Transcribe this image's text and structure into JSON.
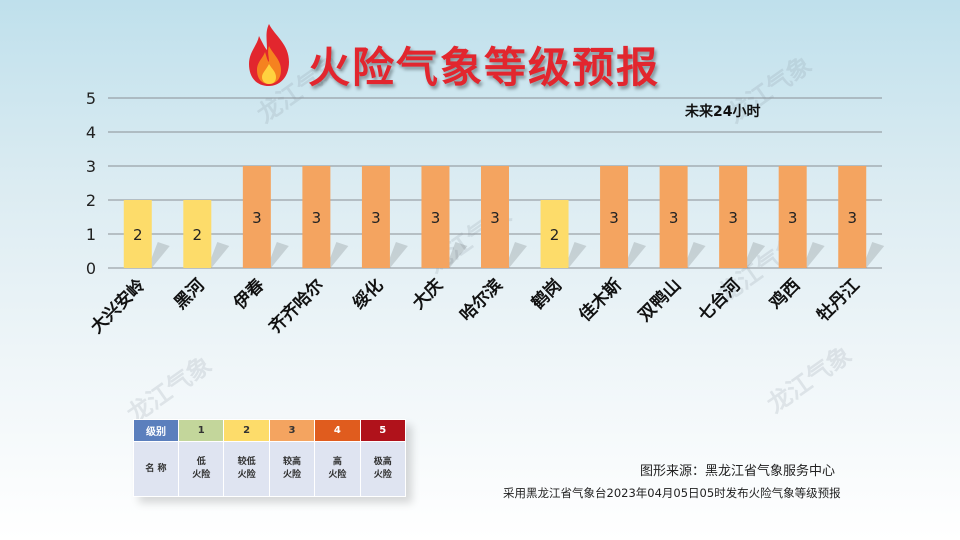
{
  "title": "火险气象等级预报",
  "period_label": "未来24小时",
  "colors": {
    "title": "#e2262e",
    "level_1": "#c3d69b",
    "level_2": "#fddc6a",
    "level_3": "#f4a460",
    "level_4": "#e05c1e",
    "level_5": "#b0121b",
    "header_blue": "#5b7fbd"
  },
  "chart_data": {
    "type": "bar",
    "categories": [
      "大兴安岭",
      "黑河",
      "伊春",
      "齐齐哈尔",
      "绥化",
      "大庆",
      "哈尔滨",
      "鹤岗",
      "佳木斯",
      "双鸭山",
      "七台河",
      "鸡西",
      "牡丹江"
    ],
    "values": [
      2,
      2,
      3,
      3,
      3,
      3,
      3,
      2,
      3,
      3,
      3,
      3,
      3
    ],
    "data_labels": [
      "2",
      "2",
      "3",
      "3",
      "3",
      "3",
      "3",
      "2",
      "3",
      "3",
      "3",
      "3",
      "3"
    ],
    "ylim": [
      0,
      5
    ],
    "y_ticks": [
      "0",
      "1",
      "2",
      "3",
      "4",
      "5"
    ],
    "grid": true,
    "annotation": "未来24小时",
    "title": "火险气象等级预报",
    "xlabel": "",
    "ylabel": ""
  },
  "legend": {
    "header_label": "级别",
    "name_label": "名 称",
    "levels": [
      {
        "level": "1",
        "line1": "低",
        "line2": "火险"
      },
      {
        "level": "2",
        "line1": "较低",
        "line2": "火险"
      },
      {
        "level": "3",
        "line1": "较高",
        "line2": "火险"
      },
      {
        "level": "4",
        "line1": "高",
        "line2": "火险"
      },
      {
        "level": "5",
        "line1": "极高",
        "line2": "火险"
      }
    ]
  },
  "footer": {
    "source": "图形来源：黑龙江省气象服务中心",
    "note": "采用黑龙江省气象台2023年04月05日05时发布火险气象等级预报"
  },
  "watermark": "龙江气象"
}
